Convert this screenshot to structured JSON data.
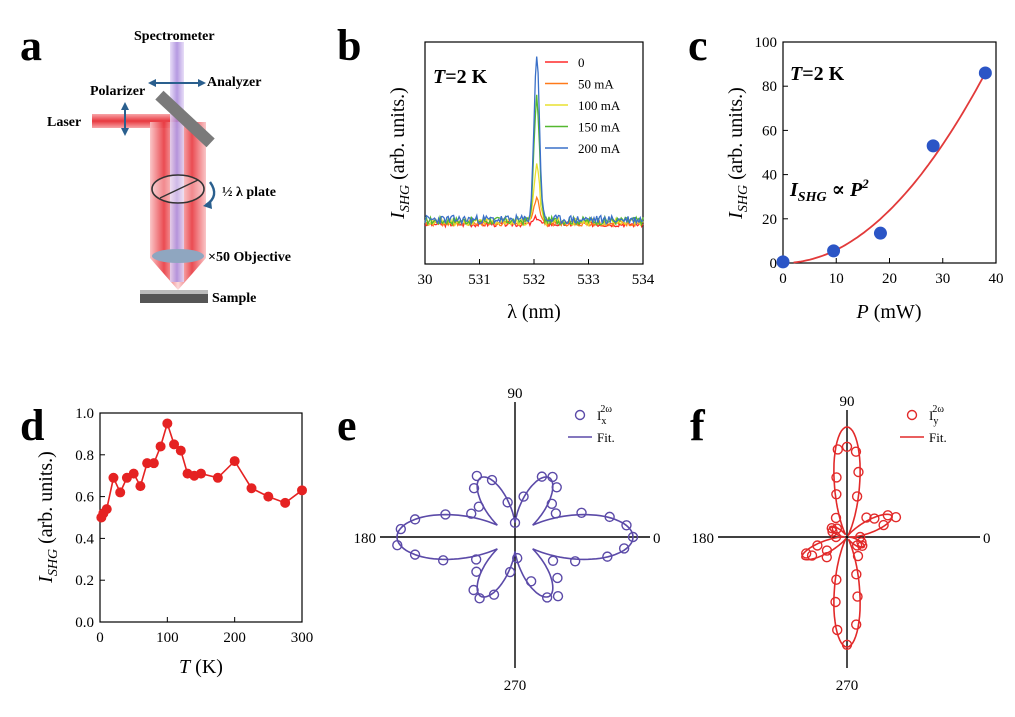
{
  "panels": {
    "a": "a",
    "b": "b",
    "c": "c",
    "d": "d",
    "e": "e",
    "f": "f"
  },
  "schematic": {
    "labels": {
      "spectrometer": "Spectrometer",
      "analyzer": "Analyzer",
      "polarizer": "Polarizer",
      "laser": "Laser",
      "half_plate": "½ λ plate",
      "objective": "×50 Objective",
      "sample": "Sample"
    },
    "colors": {
      "beam_red": "#e8383f",
      "beam_purple": "#b79be0",
      "optic_gray": "#777777",
      "lens_blue": "#8fa6c0",
      "arrow_blue": "#2a5f8e"
    }
  },
  "chart_data": [
    {
      "id": "b",
      "type": "line",
      "annotation": {
        "T": "T",
        "rest": "=2 K"
      },
      "xlabel": "λ (nm)",
      "ylabel": {
        "main": "I",
        "sub": "SHG",
        "rest": " (arb. units.)"
      },
      "xlim": [
        530,
        534
      ],
      "ylim": [
        0,
        1
      ],
      "xticks": [
        "30",
        "531",
        "532",
        "533",
        "534"
      ],
      "legend": [
        {
          "label": "0",
          "color": "#ff2a2a"
        },
        {
          "label": "50 mA",
          "color": "#ff7a1a"
        },
        {
          "label": "100 mA",
          "color": "#e8e030"
        },
        {
          "label": "150 mA",
          "color": "#55b830"
        },
        {
          "label": "200 mA",
          "color": "#3a70c8"
        }
      ],
      "series": [
        {
          "name": "0",
          "color": "#ff2a2a",
          "base": 0.18,
          "peak": 0.03,
          "noise": 0.012,
          "seed": 3
        },
        {
          "name": "50 mA",
          "color": "#ff7a1a",
          "base": 0.185,
          "peak": 0.12,
          "noise": 0.014,
          "seed": 7
        },
        {
          "name": "100 mA",
          "color": "#e8e030",
          "base": 0.19,
          "peak": 0.26,
          "noise": 0.016,
          "seed": 11
        },
        {
          "name": "150 mA",
          "color": "#55b830",
          "base": 0.195,
          "peak": 0.55,
          "noise": 0.018,
          "seed": 17
        },
        {
          "name": "200 mA",
          "color": "#3a70c8",
          "base": 0.2,
          "peak": 0.74,
          "noise": 0.02,
          "seed": 23
        }
      ]
    },
    {
      "id": "c",
      "type": "scatter",
      "annotation": {
        "T": "T",
        "rest": "=2 K"
      },
      "relation": {
        "I": "I",
        "sub": "SHG",
        "prop": " ∝ ",
        "P": "P",
        "sup": "2"
      },
      "xlabel": {
        "main": "P",
        "rest": " (mW)"
      },
      "ylabel": {
        "main": "I",
        "sub": "SHG",
        "rest": " (arb. units.)"
      },
      "xlim": [
        0,
        40
      ],
      "ylim": [
        0,
        100
      ],
      "xticks": [
        0,
        10,
        20,
        30,
        40
      ],
      "yticks": [
        0,
        20,
        40,
        60,
        80,
        100
      ],
      "points": {
        "x": [
          0,
          9.5,
          18.3,
          28.2,
          38
        ],
        "y": [
          0.5,
          5.5,
          13.5,
          53,
          86
        ]
      },
      "fit": {
        "coef": 0.0596
      },
      "point_color": "#2b55c6",
      "fit_color": "#e23a3a"
    },
    {
      "id": "d",
      "type": "line",
      "xlabel": {
        "main": "T",
        "rest": " (K)"
      },
      "ylabel": {
        "main": "I",
        "sub": "SHG",
        "rest": " (arb. units.)"
      },
      "xlim": [
        0,
        300
      ],
      "ylim": [
        0,
        1.0
      ],
      "xticks": [
        0,
        100,
        200,
        300
      ],
      "yticks": [
        "0.0",
        "0.2",
        "0.4",
        "0.6",
        "0.8",
        "1.0"
      ],
      "x": [
        2,
        5,
        10,
        20,
        30,
        40,
        50,
        60,
        70,
        80,
        90,
        100,
        110,
        120,
        130,
        140,
        150,
        175,
        200,
        225,
        250,
        275,
        300
      ],
      "y": [
        0.5,
        0.52,
        0.54,
        0.69,
        0.62,
        0.69,
        0.71,
        0.65,
        0.76,
        0.76,
        0.84,
        0.95,
        0.85,
        0.82,
        0.71,
        0.7,
        0.71,
        0.69,
        0.77,
        0.64,
        0.6,
        0.57,
        0.63
      ],
      "color": "#e52222"
    },
    {
      "id": "e",
      "type": "polar",
      "angle_labels": {
        "a0": "0",
        "a90": "90",
        "a180": "180",
        "a270": "270"
      },
      "legend": {
        "data": {
          "I": "I",
          "sub": "x",
          "sup": "2ω"
        },
        "fit": "Fit."
      },
      "color": "#5b4aa8",
      "lobes": [
        {
          "angle": 0,
          "r": 1.0,
          "w": 0.45
        },
        {
          "angle": 180,
          "r": 1.0,
          "w": 0.45
        },
        {
          "angle": 60,
          "r": 0.58,
          "w": 0.42
        },
        {
          "angle": 120,
          "r": 0.58,
          "w": 0.42
        },
        {
          "angle": 240,
          "r": 0.58,
          "w": 0.42
        },
        {
          "angle": 300,
          "r": 0.58,
          "w": 0.42
        }
      ],
      "points": [
        {
          "a": 0,
          "r": 1.0
        },
        {
          "a": 6,
          "r": 0.95
        },
        {
          "a": 12,
          "r": 0.82
        },
        {
          "a": 20,
          "r": 0.6
        },
        {
          "a": 30,
          "r": 0.4
        },
        {
          "a": 42,
          "r": 0.42
        },
        {
          "a": 50,
          "r": 0.55
        },
        {
          "a": 58,
          "r": 0.6
        },
        {
          "a": 66,
          "r": 0.56
        },
        {
          "a": 78,
          "r": 0.35
        },
        {
          "a": 90,
          "r": 0.12
        },
        {
          "a": 102,
          "r": 0.3
        },
        {
          "a": 112,
          "r": 0.52
        },
        {
          "a": 122,
          "r": 0.61
        },
        {
          "a": 130,
          "r": 0.54
        },
        {
          "a": 140,
          "r": 0.4
        },
        {
          "a": 152,
          "r": 0.42
        },
        {
          "a": 162,
          "r": 0.62
        },
        {
          "a": 170,
          "r": 0.86
        },
        {
          "a": 176,
          "r": 0.97
        },
        {
          "a": 184,
          "r": 1.0
        },
        {
          "a": 190,
          "r": 0.86
        },
        {
          "a": 198,
          "r": 0.64
        },
        {
          "a": 210,
          "r": 0.38
        },
        {
          "a": 222,
          "r": 0.44
        },
        {
          "a": 232,
          "r": 0.57
        },
        {
          "a": 240,
          "r": 0.6
        },
        {
          "a": 250,
          "r": 0.52
        },
        {
          "a": 262,
          "r": 0.3
        },
        {
          "a": 276,
          "r": 0.18
        },
        {
          "a": 290,
          "r": 0.4
        },
        {
          "a": 298,
          "r": 0.58
        },
        {
          "a": 306,
          "r": 0.62
        },
        {
          "a": 316,
          "r": 0.5
        },
        {
          "a": 328,
          "r": 0.38
        },
        {
          "a": 338,
          "r": 0.55
        },
        {
          "a": 348,
          "r": 0.8
        },
        {
          "a": 354,
          "r": 0.93
        }
      ]
    },
    {
      "id": "f",
      "type": "polar",
      "angle_labels": {
        "a0": "0",
        "a90": "90",
        "a180": "180",
        "a270": "270"
      },
      "legend": {
        "data": {
          "I": "I",
          "sub": "y",
          "sup": "2ω"
        },
        "fit": "Fit."
      },
      "color": "#e22a2a",
      "lobes": [
        {
          "angle": 90,
          "r": 1.0,
          "w": 0.28
        },
        {
          "angle": 270,
          "r": 1.0,
          "w": 0.28
        },
        {
          "angle": 25,
          "r": 0.45,
          "w": 0.3
        },
        {
          "angle": 205,
          "r": 0.45,
          "w": 0.3
        },
        {
          "angle": 150,
          "r": 0.18,
          "w": 0.35
        },
        {
          "angle": 330,
          "r": 0.18,
          "w": 0.35
        }
      ],
      "points": [
        {
          "a": 90,
          "r": 0.82
        },
        {
          "a": 96,
          "r": 0.8
        },
        {
          "a": 84,
          "r": 0.78
        },
        {
          "a": 100,
          "r": 0.55
        },
        {
          "a": 80,
          "r": 0.6
        },
        {
          "a": 104,
          "r": 0.4
        },
        {
          "a": 76,
          "r": 0.38
        },
        {
          "a": 270,
          "r": 0.98
        },
        {
          "a": 264,
          "r": 0.85
        },
        {
          "a": 276,
          "r": 0.8
        },
        {
          "a": 260,
          "r": 0.6
        },
        {
          "a": 280,
          "r": 0.55
        },
        {
          "a": 256,
          "r": 0.4
        },
        {
          "a": 284,
          "r": 0.35
        },
        {
          "a": 22,
          "r": 0.48
        },
        {
          "a": 28,
          "r": 0.42
        },
        {
          "a": 18,
          "r": 0.35
        },
        {
          "a": 34,
          "r": 0.3
        },
        {
          "a": 202,
          "r": 0.4
        },
        {
          "a": 208,
          "r": 0.36
        },
        {
          "a": 196,
          "r": 0.28
        },
        {
          "a": 214,
          "r": 0.22
        },
        {
          "a": 150,
          "r": 0.16
        },
        {
          "a": 140,
          "r": 0.12
        },
        {
          "a": 160,
          "r": 0.14
        },
        {
          "a": 330,
          "r": 0.16
        },
        {
          "a": 320,
          "r": 0.12
        },
        {
          "a": 340,
          "r": 0.14
        },
        {
          "a": 0,
          "r": 0.12
        },
        {
          "a": 180,
          "r": 0.1
        },
        {
          "a": 120,
          "r": 0.2
        },
        {
          "a": 300,
          "r": 0.2
        },
        {
          "a": 45,
          "r": 0.25
        },
        {
          "a": 225,
          "r": 0.26
        }
      ]
    }
  ]
}
